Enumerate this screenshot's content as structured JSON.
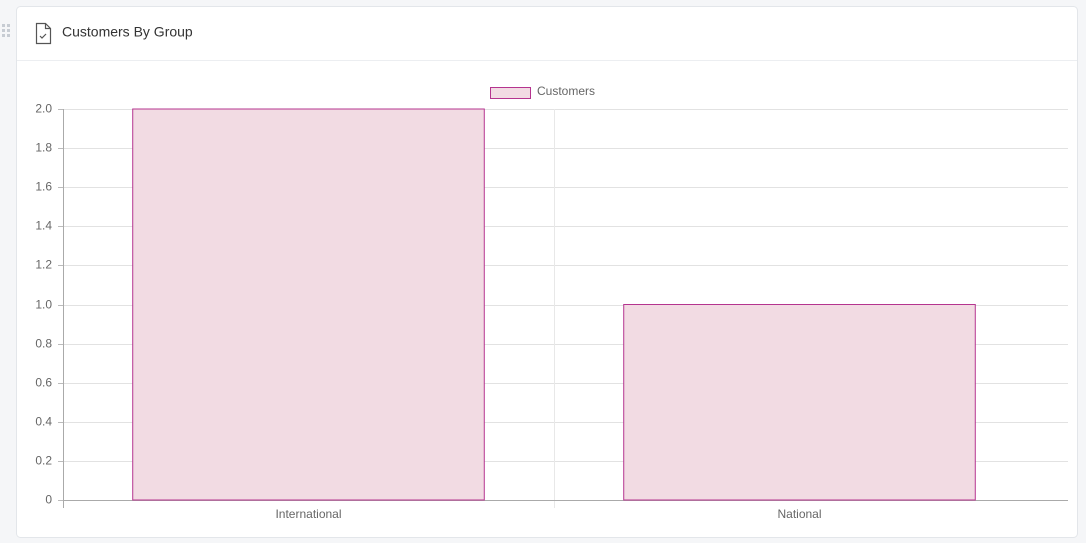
{
  "chart_data": {
    "type": "bar",
    "title": "Customers By Group",
    "categories": [
      "International",
      "National"
    ],
    "series": [
      {
        "name": "Customers",
        "color": "#b5348f",
        "fill": "#f2dbe3",
        "values": [
          2,
          1
        ]
      }
    ],
    "ylim": [
      0,
      2
    ],
    "yticks": [
      0,
      0.2,
      0.4,
      0.6,
      0.8,
      {
        "value": 1,
        "label": "1.0"
      },
      1.2,
      1.4,
      1.6,
      1.8,
      {
        "value": 2,
        "label": "2.0"
      }
    ],
    "grid": true,
    "legend": "top"
  }
}
